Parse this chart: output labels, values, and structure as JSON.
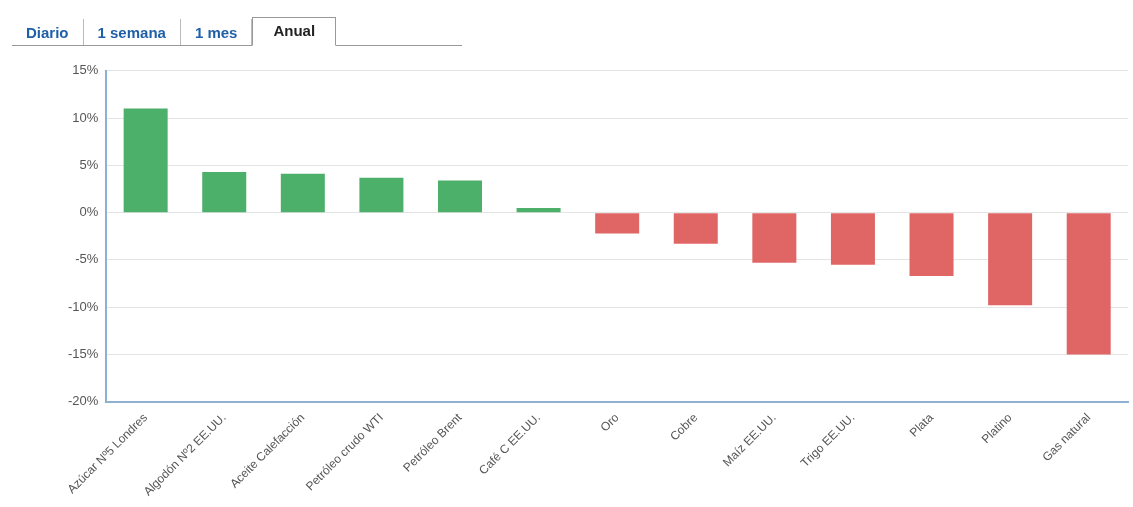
{
  "chart_data": {
    "type": "bar",
    "annotations": [
      "Diario",
      "1 semana",
      "1 mes",
      "Anual"
    ],
    "categories": [
      "Azúcar Nº5 Londres",
      "Algodón Nº2 EE.UU.",
      "Aceite Calefacción",
      "Petróleo crudo WTI",
      "Petróleo Brent",
      "Café C EE.UU.",
      "Oro",
      "Cobre",
      "Maíz EE.UU.",
      "Trigo EE.UU.",
      "Plata",
      "Platino",
      "Gas natural"
    ],
    "values": [
      11.0,
      4.3,
      4.1,
      3.7,
      3.4,
      0.5,
      -2.2,
      -3.3,
      -5.3,
      -5.5,
      -6.7,
      -9.8,
      -15.0
    ],
    "colors": [
      "#4caf6a",
      "#4caf6a",
      "#4caf6a",
      "#4caf6a",
      "#4caf6a",
      "#4caf6a",
      "#e06666",
      "#e06666",
      "#e06666",
      "#e06666",
      "#e06666",
      "#e06666",
      "#e06666"
    ],
    "ylim": [
      -20,
      15
    ],
    "yticks": [
      {
        "value": -20,
        "label": "-20%"
      },
      {
        "value": -15,
        "label": "-15%"
      },
      {
        "value": -10,
        "label": "-10%"
      },
      {
        "value": -5,
        "label": "-5%"
      },
      {
        "value": 0,
        "label": "0%"
      },
      {
        "value": 5,
        "label": "5%"
      },
      {
        "value": 10,
        "label": "10%"
      },
      {
        "value": 15,
        "label": "15%"
      }
    ],
    "grid": "y",
    "legend": false
  }
}
